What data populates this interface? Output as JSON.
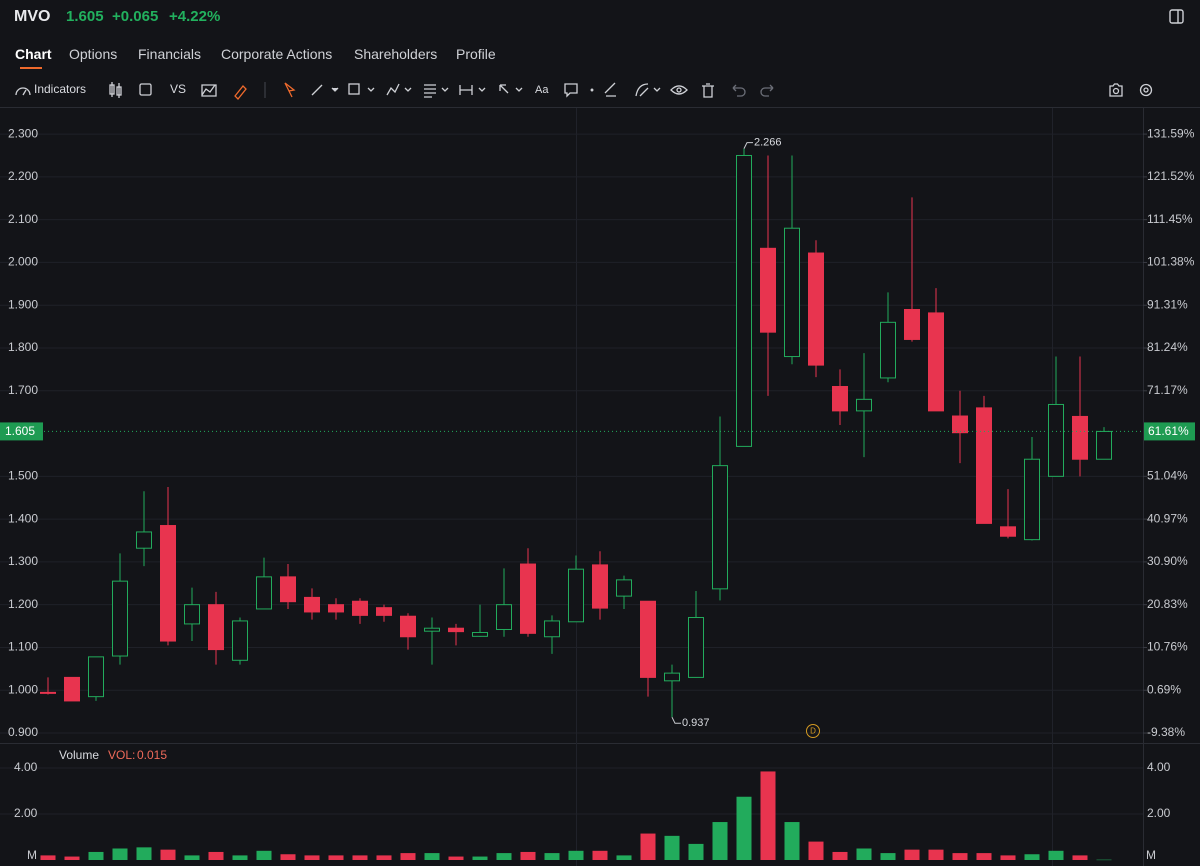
{
  "header": {
    "symbol": "MVO",
    "price": "1.605",
    "change": "+0.065",
    "change_pct": "+4.22%"
  },
  "tabs": [
    "Chart",
    "Options",
    "Financials",
    "Corporate Actions",
    "Shareholders",
    "Profile"
  ],
  "toolbar": {
    "indicators": "Indicators",
    "compare": "VS",
    "text_tool": "Aa"
  },
  "chart_data": [
    {
      "type": "candlestick",
      "open": [
        0.995,
        1.03,
        0.985,
        1.08,
        1.332,
        1.385,
        1.155,
        1.2,
        1.07,
        1.19,
        1.265,
        1.217,
        1.2,
        1.208,
        1.193,
        1.173,
        1.138,
        1.145,
        1.126,
        1.142,
        1.295,
        1.125,
        1.16,
        1.293,
        1.22,
        1.208,
        1.022,
        1.03,
        1.237,
        1.57,
        2.033,
        1.78,
        2.022,
        1.71,
        1.653,
        1.73,
        1.89,
        1.882,
        1.641,
        1.66,
        1.382,
        1.352,
        1.5,
        1.64,
        1.54
      ],
      "high": [
        1.03,
        1.03,
        1.078,
        1.32,
        1.465,
        1.475,
        1.24,
        1.23,
        1.17,
        1.31,
        1.295,
        1.238,
        1.215,
        1.215,
        1.2,
        1.18,
        1.17,
        1.155,
        1.2,
        1.285,
        1.332,
        1.175,
        1.315,
        1.325,
        1.268,
        1.208,
        1.06,
        1.232,
        1.64,
        2.266,
        2.25,
        2.25,
        2.052,
        1.75,
        1.788,
        1.93,
        2.152,
        1.94,
        1.7,
        1.688,
        1.47,
        1.592,
        1.78,
        1.78,
        1.615
      ],
      "low": [
        0.99,
        0.975,
        0.975,
        1.06,
        1.29,
        1.105,
        1.115,
        1.06,
        1.06,
        1.19,
        1.19,
        1.165,
        1.165,
        1.155,
        1.16,
        1.095,
        1.06,
        1.105,
        1.125,
        1.125,
        1.125,
        1.085,
        1.16,
        1.165,
        1.19,
        0.985,
        0.937,
        1.03,
        1.21,
        1.57,
        1.688,
        1.762,
        1.732,
        1.62,
        1.545,
        1.72,
        1.815,
        1.653,
        1.531,
        1.39,
        1.355,
        1.35,
        1.5,
        1.5,
        1.54
      ],
      "close": [
        0.993,
        0.975,
        1.078,
        1.255,
        1.37,
        1.115,
        1.2,
        1.095,
        1.162,
        1.265,
        1.207,
        1.183,
        1.183,
        1.175,
        1.175,
        1.125,
        1.145,
        1.137,
        1.135,
        1.2,
        1.133,
        1.162,
        1.283,
        1.192,
        1.258,
        1.03,
        1.04,
        1.17,
        1.525,
        2.25,
        1.837,
        2.08,
        1.76,
        1.653,
        1.68,
        1.86,
        1.82,
        1.653,
        1.602,
        1.39,
        1.36,
        1.54,
        1.668,
        1.54,
        1.605
      ],
      "up_color": "#22ab5c",
      "down_color": "#e8344f",
      "ylim": [
        0.879,
        2.361
      ],
      "yticks": [
        {
          "value": 2.3,
          "label": "2.300"
        },
        {
          "value": 2.2,
          "label": "2.200"
        },
        {
          "value": 2.1,
          "label": "2.100"
        },
        {
          "value": 2.0,
          "label": "2.000"
        },
        {
          "value": 1.9,
          "label": "1.900"
        },
        {
          "value": 1.8,
          "label": "1.800"
        },
        {
          "value": 1.7,
          "label": "1.700"
        },
        {
          "value": 1.5,
          "label": "1.500"
        },
        {
          "value": 1.4,
          "label": "1.400"
        },
        {
          "value": 1.3,
          "label": "1.300"
        },
        {
          "value": 1.2,
          "label": "1.200"
        },
        {
          "value": 1.1,
          "label": "1.100"
        },
        {
          "value": 1.0,
          "label": "1.000"
        },
        {
          "value": 0.9,
          "label": "0.900"
        }
      ],
      "y2lim": [
        -11.49,
        137.73
      ],
      "y2ticks": [
        {
          "value": 131.59,
          "label": "131.59%"
        },
        {
          "value": 121.52,
          "label": "121.52%"
        },
        {
          "value": 111.45,
          "label": "111.45%"
        },
        {
          "value": 101.38,
          "label": "101.38%"
        },
        {
          "value": 91.31,
          "label": "91.31%"
        },
        {
          "value": 81.24,
          "label": "81.24%"
        },
        {
          "value": 71.17,
          "label": "71.17%"
        },
        {
          "value": 51.04,
          "label": "51.04%"
        },
        {
          "value": 40.97,
          "label": "40.97%"
        },
        {
          "value": 30.9,
          "label": "30.90%"
        },
        {
          "value": 20.83,
          "label": "20.83%"
        },
        {
          "value": 10.76,
          "label": "10.76%"
        },
        {
          "value": 0.69,
          "label": "0.69%"
        },
        {
          "value": -9.38,
          "label": "-9.38%"
        }
      ],
      "last_price": 1.605,
      "last_pct": {
        "value": 61.61,
        "label": "61.61%"
      },
      "grid": true,
      "event_marker": "D"
    },
    {
      "type": "bar",
      "title": "Volume",
      "legend_label": "VOL:",
      "values": [
        0.2,
        0.15,
        0.35,
        0.5,
        0.55,
        0.45,
        0.2,
        0.35,
        0.2,
        0.4,
        0.25,
        0.2,
        0.2,
        0.2,
        0.2,
        0.3,
        0.3,
        0.15,
        0.15,
        0.3,
        0.35,
        0.3,
        0.4,
        0.4,
        0.2,
        1.15,
        1.05,
        0.7,
        1.65,
        2.75,
        3.85,
        1.65,
        0.8,
        0.35,
        0.5,
        0.3,
        0.45,
        0.45,
        0.3,
        0.3,
        0.2,
        0.25,
        0.4,
        0.2,
        0.015
      ],
      "ylim": [
        0,
        5
      ],
      "yticks": [
        {
          "value": 4,
          "label": "4.00"
        },
        {
          "value": 2,
          "label": "2.00"
        }
      ],
      "unit": "M"
    }
  ]
}
